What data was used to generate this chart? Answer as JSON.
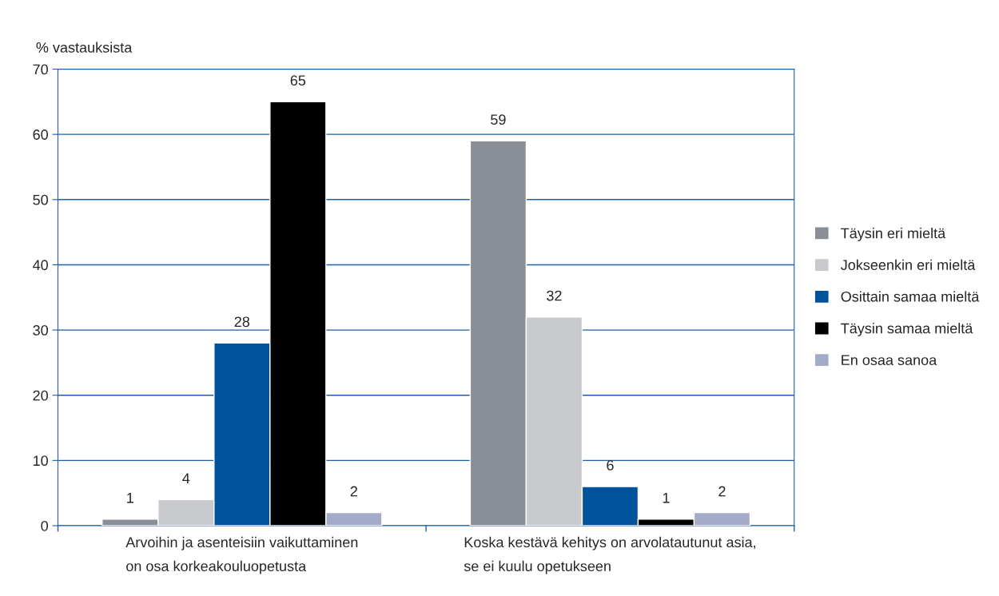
{
  "chart_data": {
    "type": "bar",
    "ylabel": "% vastauksista",
    "categories": [
      "Arvoihin ja asenteisiin vaikuttaminen\non osa korkeakouluopetusta",
      "Koska kestävä kehitys on arvolatautunut asia,\nse ei kuulu opetukseen"
    ],
    "series": [
      {
        "name": "Täysin eri mieltä",
        "color": "#8a8e96",
        "values": [
          1,
          59
        ]
      },
      {
        "name": "Jokseenkin eri mieltä",
        "color": "#c8cacd",
        "values": [
          4,
          32
        ]
      },
      {
        "name": "Osittain samaa mieltä",
        "color": "#00529b",
        "values": [
          28,
          6
        ]
      },
      {
        "name": "Täysin samaa mieltä",
        "color": "#000000",
        "values": [
          65,
          1
        ]
      },
      {
        "name": "En osaa sanoa",
        "color": "#a3abc8",
        "values": [
          2,
          2
        ]
      }
    ],
    "ylim": [
      0,
      70
    ],
    "yticks": [
      0,
      10,
      20,
      30,
      40,
      50,
      60,
      70
    ],
    "grid": "y",
    "legend": "right",
    "data_labels": true
  }
}
